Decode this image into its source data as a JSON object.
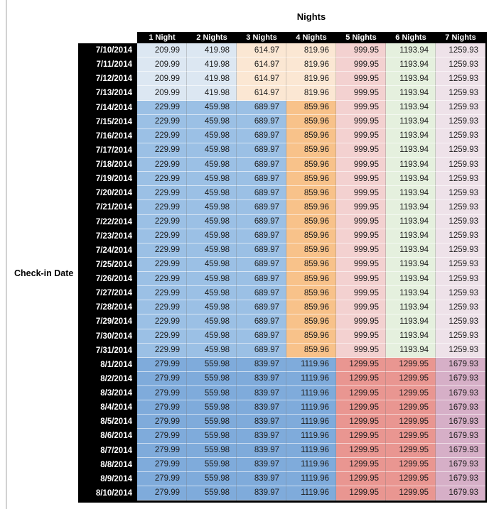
{
  "chart_data": {
    "type": "table",
    "title": "Nights",
    "row_axis_label": "Check-in Date",
    "columns": [
      "1 Night",
      "2 Nights",
      "3 Nights",
      "4 Nights",
      "5 Nights",
      "6 Nights",
      "7 Nights"
    ],
    "rows": [
      {
        "date": "7/10/2014",
        "tier": "early",
        "values": [
          209.99,
          419.98,
          614.97,
          819.96,
          999.95,
          1193.94,
          1259.93
        ]
      },
      {
        "date": "7/11/2014",
        "tier": "early",
        "values": [
          209.99,
          419.98,
          614.97,
          819.96,
          999.95,
          1193.94,
          1259.93
        ]
      },
      {
        "date": "7/12/2014",
        "tier": "early",
        "values": [
          209.99,
          419.98,
          614.97,
          819.96,
          999.95,
          1193.94,
          1259.93
        ]
      },
      {
        "date": "7/13/2014",
        "tier": "early",
        "values": [
          209.99,
          419.98,
          614.97,
          819.96,
          999.95,
          1193.94,
          1259.93
        ]
      },
      {
        "date": "7/14/2014",
        "tier": "mid",
        "values": [
          229.99,
          459.98,
          689.97,
          859.96,
          999.95,
          1193.94,
          1259.93
        ]
      },
      {
        "date": "7/15/2014",
        "tier": "mid",
        "values": [
          229.99,
          459.98,
          689.97,
          859.96,
          999.95,
          1193.94,
          1259.93
        ]
      },
      {
        "date": "7/16/2014",
        "tier": "mid",
        "values": [
          229.99,
          459.98,
          689.97,
          859.96,
          999.95,
          1193.94,
          1259.93
        ]
      },
      {
        "date": "7/17/2014",
        "tier": "mid",
        "values": [
          229.99,
          459.98,
          689.97,
          859.96,
          999.95,
          1193.94,
          1259.93
        ]
      },
      {
        "date": "7/18/2014",
        "tier": "mid",
        "values": [
          229.99,
          459.98,
          689.97,
          859.96,
          999.95,
          1193.94,
          1259.93
        ]
      },
      {
        "date": "7/19/2014",
        "tier": "mid",
        "values": [
          229.99,
          459.98,
          689.97,
          859.96,
          999.95,
          1193.94,
          1259.93
        ]
      },
      {
        "date": "7/20/2014",
        "tier": "mid",
        "values": [
          229.99,
          459.98,
          689.97,
          859.96,
          999.95,
          1193.94,
          1259.93
        ]
      },
      {
        "date": "7/21/2014",
        "tier": "mid",
        "values": [
          229.99,
          459.98,
          689.97,
          859.96,
          999.95,
          1193.94,
          1259.93
        ]
      },
      {
        "date": "7/22/2014",
        "tier": "mid",
        "values": [
          229.99,
          459.98,
          689.97,
          859.96,
          999.95,
          1193.94,
          1259.93
        ]
      },
      {
        "date": "7/23/2014",
        "tier": "mid",
        "values": [
          229.99,
          459.98,
          689.97,
          859.96,
          999.95,
          1193.94,
          1259.93
        ]
      },
      {
        "date": "7/24/2014",
        "tier": "mid",
        "values": [
          229.99,
          459.98,
          689.97,
          859.96,
          999.95,
          1193.94,
          1259.93
        ]
      },
      {
        "date": "7/25/2014",
        "tier": "mid",
        "values": [
          229.99,
          459.98,
          689.97,
          859.96,
          999.95,
          1193.94,
          1259.93
        ]
      },
      {
        "date": "7/26/2014",
        "tier": "mid",
        "values": [
          229.99,
          459.98,
          689.97,
          859.96,
          999.95,
          1193.94,
          1259.93
        ]
      },
      {
        "date": "7/27/2014",
        "tier": "mid",
        "values": [
          229.99,
          459.98,
          689.97,
          859.96,
          999.95,
          1193.94,
          1259.93
        ]
      },
      {
        "date": "7/28/2014",
        "tier": "mid",
        "values": [
          229.99,
          459.98,
          689.97,
          859.96,
          999.95,
          1193.94,
          1259.93
        ]
      },
      {
        "date": "7/29/2014",
        "tier": "mid",
        "values": [
          229.99,
          459.98,
          689.97,
          859.96,
          999.95,
          1193.94,
          1259.93
        ]
      },
      {
        "date": "7/30/2014",
        "tier": "mid",
        "values": [
          229.99,
          459.98,
          689.97,
          859.96,
          999.95,
          1193.94,
          1259.93
        ]
      },
      {
        "date": "7/31/2014",
        "tier": "mid",
        "values": [
          229.99,
          459.98,
          689.97,
          859.96,
          999.95,
          1193.94,
          1259.93
        ]
      },
      {
        "date": "8/1/2014",
        "tier": "late",
        "values": [
          279.99,
          559.98,
          839.97,
          1119.96,
          1299.95,
          1299.95,
          1679.93
        ]
      },
      {
        "date": "8/2/2014",
        "tier": "late",
        "values": [
          279.99,
          559.98,
          839.97,
          1119.96,
          1299.95,
          1299.95,
          1679.93
        ]
      },
      {
        "date": "8/3/2014",
        "tier": "late",
        "values": [
          279.99,
          559.98,
          839.97,
          1119.96,
          1299.95,
          1299.95,
          1679.93
        ]
      },
      {
        "date": "8/4/2014",
        "tier": "late",
        "values": [
          279.99,
          559.98,
          839.97,
          1119.96,
          1299.95,
          1299.95,
          1679.93
        ]
      },
      {
        "date": "8/5/2014",
        "tier": "late",
        "values": [
          279.99,
          559.98,
          839.97,
          1119.96,
          1299.95,
          1299.95,
          1679.93
        ]
      },
      {
        "date": "8/6/2014",
        "tier": "late",
        "values": [
          279.99,
          559.98,
          839.97,
          1119.96,
          1299.95,
          1299.95,
          1679.93
        ]
      },
      {
        "date": "8/7/2014",
        "tier": "late",
        "values": [
          279.99,
          559.98,
          839.97,
          1119.96,
          1299.95,
          1299.95,
          1679.93
        ]
      },
      {
        "date": "8/8/2014",
        "tier": "late",
        "values": [
          279.99,
          559.98,
          839.97,
          1119.96,
          1299.95,
          1299.95,
          1679.93
        ]
      },
      {
        "date": "8/9/2014",
        "tier": "late",
        "values": [
          279.99,
          559.98,
          839.97,
          1119.96,
          1299.95,
          1299.95,
          1679.93
        ]
      },
      {
        "date": "8/10/2014",
        "tier": "late",
        "values": [
          279.99,
          559.98,
          839.97,
          1119.96,
          1299.95,
          1299.95,
          1679.93
        ]
      }
    ]
  },
  "styles": {
    "header_bg": "#000000",
    "header_text": "#ffffff",
    "palette": {
      "lightBlue": "#dce7f2",
      "lightOrange": "#fbe7d3",
      "medBlue": "#9bc0e5",
      "medOrange": "#f8c28a",
      "lightPink": "#f3d1d0",
      "lightGreen": "#e5f0de",
      "lightMauve": "#eee2e9",
      "deepBlue": "#7fabdb",
      "salmonRed": "#e99691",
      "deepMauve": "#d6afc7"
    },
    "tier_colors": {
      "early": [
        "lightBlue",
        "lightBlue",
        "lightOrange",
        "lightOrange",
        "lightPink",
        "lightGreen",
        "lightMauve"
      ],
      "mid": [
        "medBlue",
        "medBlue",
        "medBlue",
        "medOrange",
        "lightPink",
        "lightGreen",
        "lightMauve"
      ],
      "late": [
        "deepBlue",
        "deepBlue",
        "deepBlue",
        "deepBlue",
        "salmonRed",
        "salmonRed",
        "deepMauve"
      ]
    }
  }
}
